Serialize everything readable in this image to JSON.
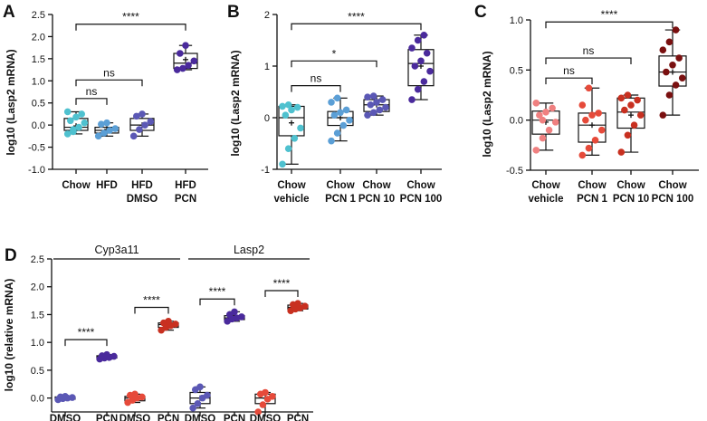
{
  "chart_data": [
    {
      "id": "A",
      "type": "box",
      "panel_label": "A",
      "ylabel": "log10 (Lasp2 mRNA)",
      "ylim": [
        -1.0,
        2.5
      ],
      "yticks": [
        "-1.0",
        "-0.5",
        "0.0",
        "0.5",
        "1.0",
        "1.5",
        "2.0",
        "2.5"
      ],
      "tick_values": [
        -1.0,
        -0.5,
        0.0,
        0.5,
        1.0,
        1.5,
        2.0,
        2.5
      ],
      "categories": [
        [
          "Chow"
        ],
        [
          "HFD"
        ],
        [
          "HFD",
          "DMSO"
        ],
        [
          "HFD",
          "PCN"
        ]
      ],
      "colors": [
        "#4fc1cf",
        "#5b9fd6",
        "#5b58b5",
        "#4a2a9c"
      ],
      "stats": [
        {
          "min": -0.2,
          "q1": -0.12,
          "median": -0.05,
          "q3": 0.15,
          "max": 0.3,
          "mean": -0.02
        },
        {
          "min": -0.25,
          "q1": -0.18,
          "median": -0.12,
          "q3": -0.05,
          "max": 0.05,
          "mean": -0.1
        },
        {
          "min": -0.25,
          "q1": -0.12,
          "median": 0.0,
          "q3": 0.15,
          "max": 0.25,
          "mean": 0.0
        },
        {
          "min": 1.25,
          "q1": 1.28,
          "median": 1.4,
          "q3": 1.62,
          "max": 1.8,
          "mean": 1.48
        }
      ],
      "points": [
        [
          -0.2,
          -0.15,
          -0.05,
          0.05,
          0.1,
          0.18,
          0.25,
          0.3,
          -0.1
        ],
        [
          -0.25,
          -0.18,
          -0.12,
          -0.08,
          0.02,
          0.05
        ],
        [
          -0.25,
          -0.1,
          0.0,
          0.08,
          0.2,
          0.25
        ],
        [
          1.25,
          1.28,
          1.35,
          1.45,
          1.62,
          1.8
        ]
      ],
      "comparisons": [
        {
          "a": 0,
          "b": 1,
          "label": "ns",
          "level": 0.6
        },
        {
          "a": 0,
          "b": 2,
          "label": "ns",
          "level": 1.02
        },
        {
          "a": 0,
          "b": 3,
          "label": "****",
          "level": 2.28
        }
      ]
    },
    {
      "id": "B",
      "type": "box",
      "panel_label": "B",
      "ylabel": "log10 (Lasp2 mRNA)",
      "ylim": [
        -1,
        2
      ],
      "yticks": [
        "-1",
        "0",
        "1",
        "2"
      ],
      "tick_values": [
        -1,
        0,
        1,
        2
      ],
      "categories": [
        [
          "Chow",
          "vehicle"
        ],
        [
          "Chow",
          "PCN 1"
        ],
        [
          "Chow",
          "PCN 10"
        ],
        [
          "Chow",
          "PCN 100"
        ]
      ],
      "colors": [
        "#4fc1cf",
        "#5b9fd6",
        "#5b58b5",
        "#4a2a9c"
      ],
      "stats": [
        {
          "min": -0.9,
          "q1": -0.35,
          "median": 0.0,
          "q3": 0.22,
          "max": 0.25,
          "mean": -0.1
        },
        {
          "min": -0.45,
          "q1": -0.15,
          "median": 0.0,
          "q3": 0.12,
          "max": 0.38,
          "mean": 0.0
        },
        {
          "min": 0.05,
          "q1": 0.12,
          "median": 0.25,
          "q3": 0.35,
          "max": 0.42,
          "mean": 0.25
        },
        {
          "min": 0.35,
          "q1": 0.62,
          "median": 1.05,
          "q3": 1.32,
          "max": 1.6,
          "mean": 1.0
        }
      ],
      "points": [
        [
          -0.9,
          -0.6,
          -0.4,
          -0.2,
          0.05,
          0.15,
          0.2,
          0.22,
          0.25
        ],
        [
          -0.45,
          -0.3,
          -0.15,
          -0.05,
          0.05,
          0.1,
          0.15,
          0.3,
          0.38
        ],
        [
          0.05,
          0.1,
          0.15,
          0.2,
          0.25,
          0.3,
          0.35,
          0.4,
          0.42
        ],
        [
          0.35,
          0.55,
          0.7,
          0.9,
          1.0,
          1.1,
          1.25,
          1.35,
          1.5,
          1.6
        ]
      ],
      "comparisons": [
        {
          "a": 0,
          "b": 1,
          "label": "ns",
          "level": 0.62
        },
        {
          "a": 0,
          "b": 2,
          "label": "*",
          "level": 1.1
        },
        {
          "a": 0,
          "b": 3,
          "label": "****",
          "level": 1.82
        }
      ]
    },
    {
      "id": "C",
      "type": "box",
      "panel_label": "C",
      "ylabel": "log10 (Lasp2 mRNA)",
      "ylim": [
        -0.5,
        1.0
      ],
      "yticks": [
        "-0.5",
        "0.0",
        "0.5",
        "1.0"
      ],
      "tick_values": [
        -0.5,
        0.0,
        0.5,
        1.0
      ],
      "categories": [
        [
          "Chow",
          "vehicle"
        ],
        [
          "Chow",
          "PCN 1"
        ],
        [
          "Chow",
          "PCN 10"
        ],
        [
          "Chow",
          "PCN 100"
        ]
      ],
      "colors": [
        "#f08080",
        "#e64a3a",
        "#c83020",
        "#7a1010"
      ],
      "stats": [
        {
          "min": -0.3,
          "q1": -0.14,
          "median": 0.0,
          "q3": 0.09,
          "max": 0.17,
          "mean": -0.02
        },
        {
          "min": -0.35,
          "q1": -0.22,
          "median": -0.05,
          "q3": 0.07,
          "max": 0.32,
          "mean": -0.05
        },
        {
          "min": -0.32,
          "q1": -0.08,
          "median": 0.08,
          "q3": 0.22,
          "max": 0.25,
          "mean": 0.05
        },
        {
          "min": 0.05,
          "q1": 0.34,
          "median": 0.48,
          "q3": 0.64,
          "max": 0.9,
          "mean": 0.48
        }
      ],
      "points": [
        [
          -0.3,
          -0.18,
          -0.1,
          -0.02,
          0.05,
          0.08,
          0.12,
          0.17,
          0.0
        ],
        [
          -0.35,
          -0.28,
          -0.2,
          -0.1,
          0.0,
          0.05,
          0.07,
          0.15,
          0.32
        ],
        [
          -0.32,
          -0.15,
          -0.05,
          0.05,
          0.1,
          0.15,
          0.2,
          0.22,
          0.25
        ],
        [
          0.05,
          0.25,
          0.35,
          0.42,
          0.48,
          0.55,
          0.62,
          0.7,
          0.78,
          0.9
        ]
      ],
      "comparisons": [
        {
          "a": 0,
          "b": 1,
          "label": "ns",
          "level": 0.42
        },
        {
          "a": 0,
          "b": 2,
          "label": "ns",
          "level": 0.62
        },
        {
          "a": 0,
          "b": 3,
          "label": "****",
          "level": 0.98
        }
      ]
    },
    {
      "id": "D",
      "type": "box",
      "panel_label": "D",
      "ylabel": "log10 (relative mRNA)",
      "ylim": [
        -0.25,
        2.5
      ],
      "yticks": [
        "0.0",
        "0.5",
        "1.0",
        "1.5",
        "2.0",
        "2.5"
      ],
      "tick_values": [
        0.0,
        0.5,
        1.0,
        1.5,
        2.0,
        2.5
      ],
      "group_titles": [
        {
          "label": "Cyp3a11",
          "span": [
            0,
            3
          ]
        },
        {
          "label": "Lasp2",
          "span": [
            4,
            7
          ]
        }
      ],
      "categories": [
        [
          "DMSO"
        ],
        [
          "PCN"
        ],
        [
          "DMSO"
        ],
        [
          "PCN"
        ],
        [
          "DMSO"
        ],
        [
          "PCN"
        ],
        [
          "DMSO"
        ],
        [
          "PCN"
        ]
      ],
      "colors": [
        "#5b58b5",
        "#4a2a9c",
        "#e64a3a",
        "#c83020",
        "#5b58b5",
        "#4a2a9c",
        "#e64a3a",
        "#c83020"
      ],
      "stats": [
        {
          "min": -0.03,
          "q1": -0.02,
          "median": 0.0,
          "q3": 0.02,
          "max": 0.03,
          "mean": 0.0
        },
        {
          "min": 0.7,
          "q1": 0.72,
          "median": 0.74,
          "q3": 0.76,
          "max": 0.78,
          "mean": 0.74
        },
        {
          "min": -0.08,
          "q1": -0.05,
          "median": 0.0,
          "q3": 0.03,
          "max": 0.07,
          "mean": 0.0
        },
        {
          "min": 1.22,
          "q1": 1.27,
          "median": 1.32,
          "q3": 1.35,
          "max": 1.38,
          "mean": 1.31
        },
        {
          "min": -0.18,
          "q1": -0.1,
          "median": 0.0,
          "q3": 0.1,
          "max": 0.2,
          "mean": 0.0
        },
        {
          "min": 1.38,
          "q1": 1.41,
          "median": 1.44,
          "q3": 1.48,
          "max": 1.55,
          "mean": 1.45
        },
        {
          "min": -0.25,
          "q1": -0.1,
          "median": 0.0,
          "q3": 0.07,
          "max": 0.1,
          "mean": 0.0
        },
        {
          "min": 1.57,
          "q1": 1.6,
          "median": 1.63,
          "q3": 1.67,
          "max": 1.7,
          "mean": 1.63
        }
      ],
      "points": [
        [
          -0.03,
          -0.01,
          0.0,
          0.01,
          0.02,
          0.03
        ],
        [
          0.7,
          0.72,
          0.73,
          0.75,
          0.76,
          0.78
        ],
        [
          -0.08,
          -0.04,
          0.0,
          0.02,
          0.05,
          0.07
        ],
        [
          1.22,
          1.27,
          1.3,
          1.33,
          1.35,
          1.38
        ],
        [
          -0.18,
          -0.1,
          0.0,
          0.05,
          0.15,
          0.2
        ],
        [
          1.38,
          1.42,
          1.44,
          1.46,
          1.5,
          1.55
        ],
        [
          -0.25,
          -0.12,
          -0.02,
          0.03,
          0.07,
          0.1
        ],
        [
          1.57,
          1.6,
          1.62,
          1.65,
          1.68,
          1.7
        ]
      ],
      "comparisons": [
        {
          "a": 0,
          "b": 1,
          "label": "****",
          "level": 1.05
        },
        {
          "a": 2,
          "b": 3,
          "label": "****",
          "level": 1.63
        },
        {
          "a": 4,
          "b": 5,
          "label": "****",
          "level": 1.78
        },
        {
          "a": 6,
          "b": 7,
          "label": "****",
          "level": 1.93
        }
      ]
    }
  ]
}
